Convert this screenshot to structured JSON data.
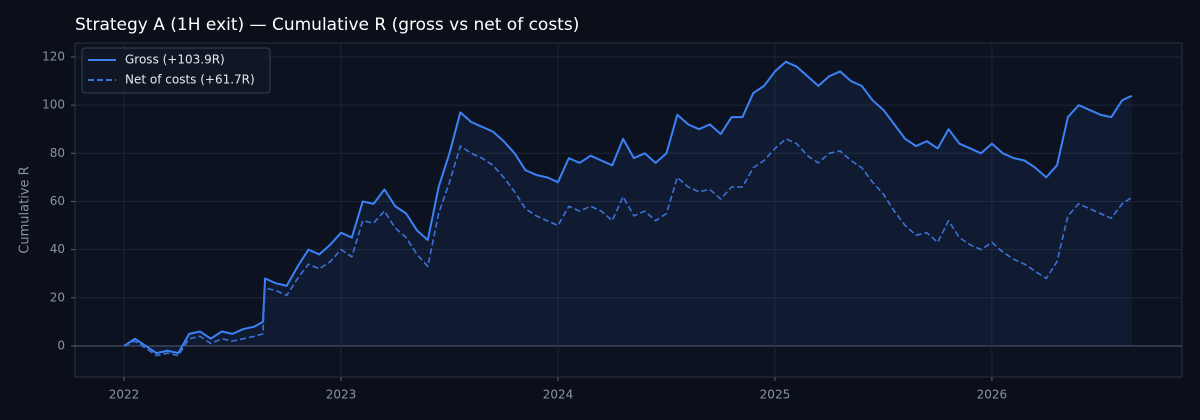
{
  "chart_data": {
    "type": "line",
    "title": "Strategy A (1H exit) — Cumulative R (gross vs net of costs)",
    "ylabel": "Cumulative R",
    "x": [
      2022.0,
      2022.05,
      2022.1,
      2022.15,
      2022.2,
      2022.25,
      2022.3,
      2022.35,
      2022.4,
      2022.45,
      2022.5,
      2022.55,
      2022.6,
      2022.64,
      2022.65,
      2022.7,
      2022.75,
      2022.8,
      2022.85,
      2022.9,
      2022.95,
      2023.0,
      2023.05,
      2023.1,
      2023.15,
      2023.2,
      2023.25,
      2023.3,
      2023.35,
      2023.4,
      2023.45,
      2023.5,
      2023.55,
      2023.6,
      2023.65,
      2023.7,
      2023.75,
      2023.8,
      2023.85,
      2023.9,
      2023.95,
      2024.0,
      2024.05,
      2024.1,
      2024.15,
      2024.2,
      2024.25,
      2024.3,
      2024.35,
      2024.4,
      2024.45,
      2024.5,
      2024.55,
      2024.6,
      2024.65,
      2024.7,
      2024.75,
      2024.8,
      2024.85,
      2024.9,
      2024.95,
      2025.0,
      2025.05,
      2025.1,
      2025.15,
      2025.2,
      2025.25,
      2025.3,
      2025.35,
      2025.4,
      2025.45,
      2025.5,
      2025.55,
      2025.6,
      2025.65,
      2025.7,
      2025.75,
      2025.8,
      2025.85,
      2025.9,
      2025.95,
      2026.0,
      2026.05,
      2026.1,
      2026.15,
      2026.2,
      2026.25,
      2026.3,
      2026.35,
      2026.4,
      2026.45,
      2026.5,
      2026.55,
      2026.6,
      2026.645
    ],
    "series": [
      {
        "name": "Gross (+103.9R)",
        "color": "#3b82f6",
        "linestyle": "solid",
        "fill": true,
        "values": [
          0,
          3,
          0,
          -3,
          -2,
          -3,
          5,
          6,
          3,
          6,
          5,
          7,
          8,
          10,
          28,
          26,
          25,
          33,
          40,
          38,
          42,
          47,
          45,
          60,
          59,
          65,
          58,
          55,
          48,
          44,
          66,
          80,
          97,
          93,
          91,
          89,
          85,
          80,
          73,
          71,
          70,
          68,
          78,
          76,
          79,
          77,
          75,
          86,
          78,
          80,
          76,
          80,
          96,
          92,
          90,
          92,
          88,
          95,
          95,
          105,
          108,
          114,
          118,
          116,
          112,
          108,
          112,
          114,
          110,
          108,
          102,
          98,
          92,
          86,
          83,
          85,
          82,
          90,
          84,
          82,
          80,
          84,
          80,
          78,
          77,
          74,
          70,
          75,
          95,
          100,
          98,
          96,
          95,
          102,
          103.9
        ]
      },
      {
        "name": "Net of costs (+61.7R)",
        "color": "#3a72d8",
        "linestyle": "dashed",
        "fill": false,
        "values": [
          0,
          2,
          -1,
          -4,
          -3,
          -4,
          3,
          4,
          1,
          3,
          2,
          3,
          4,
          5,
          24,
          23,
          21,
          28,
          34,
          32,
          35,
          40,
          37,
          52,
          51,
          56,
          49,
          45,
          38,
          33,
          55,
          68,
          83,
          80,
          78,
          75,
          70,
          64,
          57,
          54,
          52,
          50,
          58,
          56,
          58,
          56,
          52,
          62,
          54,
          56,
          52,
          55,
          70,
          66,
          64,
          65,
          61,
          66,
          66,
          74,
          77,
          82,
          86,
          84,
          79,
          76,
          80,
          81,
          77,
          74,
          68,
          63,
          56,
          50,
          46,
          47,
          43,
          52,
          45,
          42,
          40,
          43,
          39,
          36,
          34,
          31,
          28,
          35,
          54,
          59,
          57,
          55,
          53,
          59,
          61.7
        ]
      }
    ],
    "xlim": [
      2021.774,
      2026.876
    ],
    "xticks": [
      2022,
      2023,
      2024,
      2025,
      2026
    ],
    "ylim": [
      -12.9,
      125.8
    ],
    "yticks": [
      0,
      20,
      40,
      60,
      80,
      100,
      120
    ],
    "grid": true,
    "legend": "upper left"
  }
}
